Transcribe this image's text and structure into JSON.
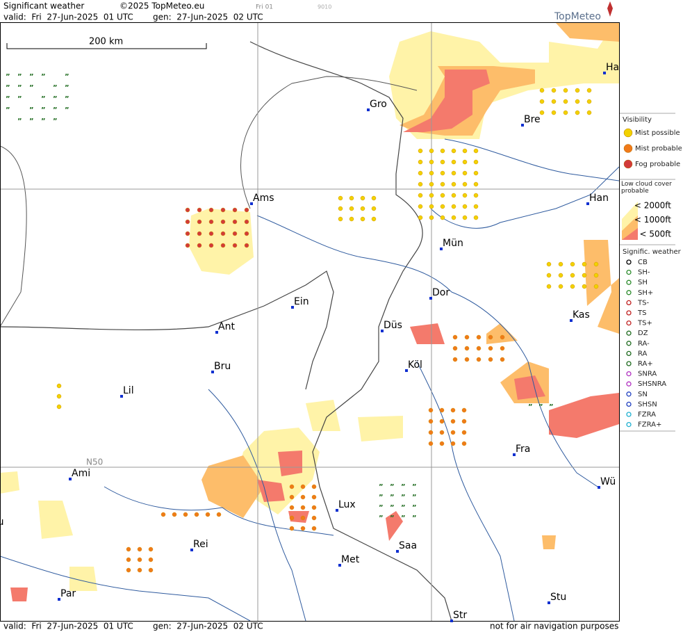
{
  "header": {
    "title": "Significant weather",
    "copyright": "©2025 TopMeteo.eu",
    "run": "Fri 01",
    "code": "9010",
    "valid": "valid:  Fri  27-Jun-2025  01 UTC",
    "gen": "gen:  27-Jun-2025  02 UTC",
    "brand": "TopMeteo"
  },
  "map": {
    "scale": "200 km",
    "grid_label": "N50",
    "cities": [
      "Gro",
      "Bre",
      "Ha",
      "Ams",
      "Han",
      "Mün",
      "Dor",
      "Ein",
      "Kas",
      "Düs",
      "Ant",
      "Köl",
      "Bru",
      "Lil",
      "Fra",
      "Ami",
      "Wü",
      "Lux",
      "ou",
      "Saa",
      "Rei",
      "Met",
      "Stu",
      "Par",
      "Str"
    ]
  },
  "legend": {
    "visibility": {
      "title": "Visibility",
      "items": [
        "Mist possible",
        "Mist probable",
        "Fog probable"
      ]
    },
    "cloud": {
      "title": "Low cloud cover probable",
      "items": [
        "< 2000ft",
        "< 1000ft",
        "<   500ft"
      ]
    },
    "weather": {
      "title": "Signific. weather",
      "items": [
        "CB",
        "SH-",
        "SH",
        "SH+",
        "TS-",
        "TS",
        "TS+",
        "DZ",
        "RA-",
        "RA",
        "RA+",
        "SNRA",
        "SHSNRA",
        "SN",
        "SHSN",
        "FZRA",
        "FZRA+"
      ]
    }
  },
  "footer": {
    "valid": "valid:  Fri  27-Jun-2025  01 UTC",
    "gen": "gen:  27-Jun-2025  02 UTC",
    "note": "not for air navigation purposes"
  }
}
